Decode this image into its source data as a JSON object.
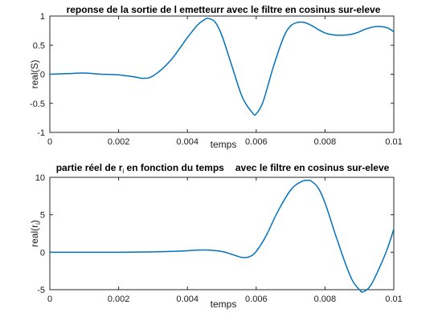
{
  "chart_data": [
    {
      "type": "line",
      "title": "reponse de la sortie de l emetteurr avec le filtre en cosinus sur-eleve",
      "xlabel": "temps",
      "ylabel": "real(S)",
      "xlim": [
        0,
        0.01
      ],
      "ylim": [
        -1,
        1
      ],
      "xticks": [
        "0",
        "0.002",
        "0.004",
        "0.006",
        "0.008",
        "0.01"
      ],
      "yticks": [
        "-1",
        "-0.5",
        "0",
        "0.5",
        "1"
      ],
      "grid": false,
      "color": "#0072bd",
      "x": [
        0,
        0.0005,
        0.001,
        0.0015,
        0.002,
        0.0025,
        0.0027,
        0.003,
        0.0035,
        0.004,
        0.0043,
        0.0045,
        0.0046,
        0.0048,
        0.005,
        0.0053,
        0.0056,
        0.0059,
        0.006,
        0.0062,
        0.0065,
        0.0068,
        0.007,
        0.0072,
        0.0074,
        0.0076,
        0.0078,
        0.008,
        0.0082,
        0.0085,
        0.0088,
        0.009,
        0.0092,
        0.0095,
        0.0098,
        0.01
      ],
      "y": [
        0.0,
        0.01,
        0.02,
        0.0,
        -0.01,
        -0.05,
        -0.07,
        -0.03,
        0.23,
        0.63,
        0.85,
        0.94,
        0.96,
        0.9,
        0.67,
        0.13,
        -0.4,
        -0.67,
        -0.68,
        -0.47,
        0.13,
        0.64,
        0.83,
        0.89,
        0.89,
        0.84,
        0.77,
        0.71,
        0.68,
        0.67,
        0.69,
        0.73,
        0.78,
        0.82,
        0.8,
        0.73
      ]
    },
    {
      "type": "line",
      "title": "partie réel de r_i en fonction du temps avec le filtre en cosinus sur-eleve",
      "title_parts": [
        "partie  réel  de  r",
        "i",
        "  en  fonction  du  temps",
        "avec  le  filtre  en  cosinus  sur-eleve"
      ],
      "xlabel": "temps",
      "ylabel_base": "real(r",
      "ylabel_sub": "i",
      "ylabel_close": ")",
      "xlim": [
        0,
        0.01
      ],
      "ylim": [
        -5,
        10
      ],
      "xticks": [
        "0",
        "0.002",
        "0.004",
        "0.006",
        "0.008",
        "0.01"
      ],
      "yticks": [
        "-5",
        "0",
        "5",
        "10"
      ],
      "grid": false,
      "color": "#0072bd",
      "x": [
        0,
        0.001,
        0.002,
        0.003,
        0.0035,
        0.004,
        0.0045,
        0.005,
        0.0053,
        0.0056,
        0.0058,
        0.006,
        0.0063,
        0.0066,
        0.007,
        0.0073,
        0.0075,
        0.0076,
        0.0078,
        0.008,
        0.0083,
        0.0086,
        0.0088,
        0.009,
        0.0091,
        0.0093,
        0.0095,
        0.0098,
        0.01
      ],
      "y": [
        0,
        0,
        0,
        0.05,
        0.1,
        0.2,
        0.3,
        0.1,
        -0.3,
        -0.7,
        -0.6,
        0.1,
        2.3,
        5.2,
        8.3,
        9.4,
        9.6,
        9.5,
        8.6,
        6.6,
        2.4,
        -1.6,
        -3.8,
        -5.0,
        -5.3,
        -4.6,
        -2.9,
        0.3,
        3.1
      ]
    }
  ]
}
